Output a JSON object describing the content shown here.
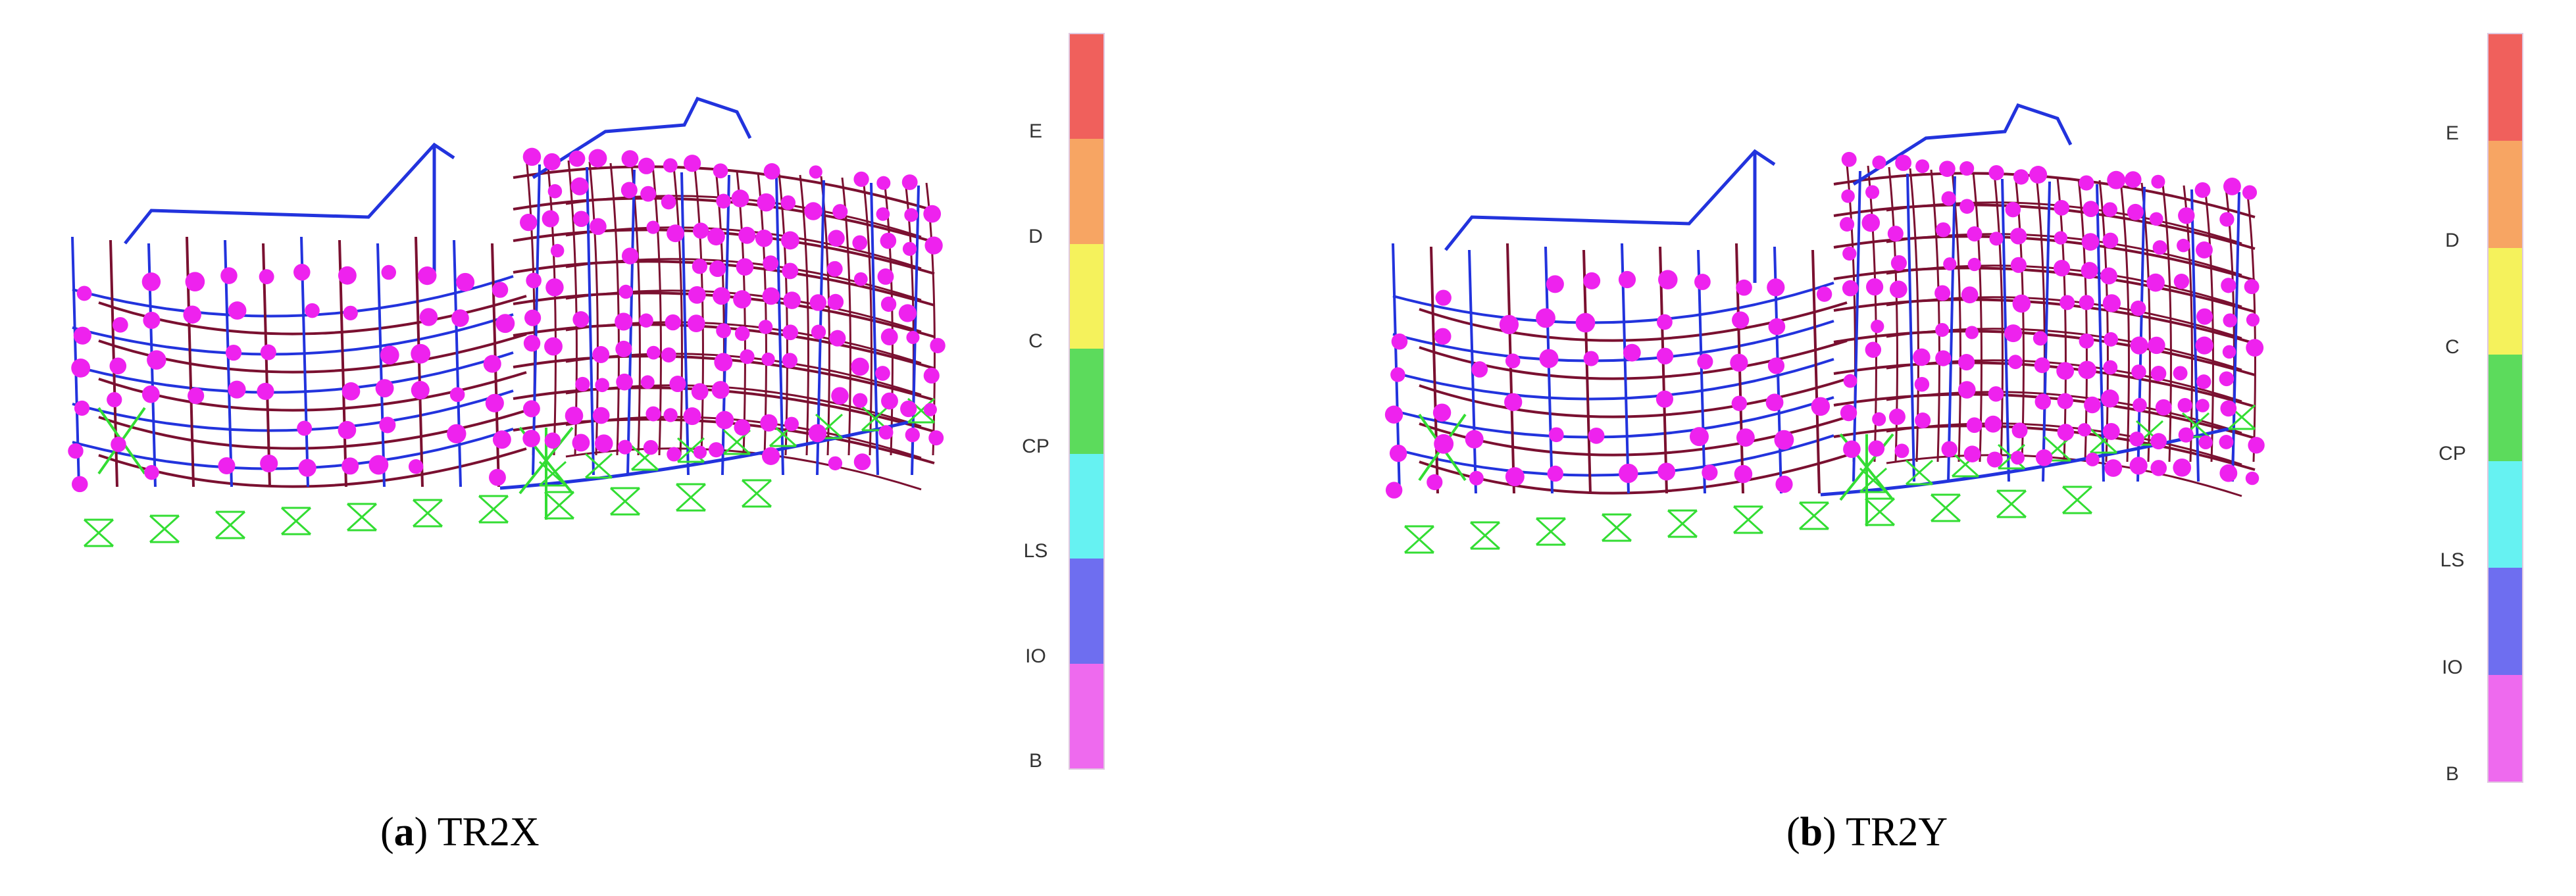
{
  "legend": {
    "levels": [
      {
        "label": "E",
        "color": "#f0605c"
      },
      {
        "label": "D",
        "color": "#f7a563"
      },
      {
        "label": "C",
        "color": "#f5f25c"
      },
      {
        "label": "CP",
        "color": "#5cdb5c"
      },
      {
        "label": "LS",
        "color": "#66f2f2"
      },
      {
        "label": "IO",
        "color": "#6e6ef0"
      },
      {
        "label": "B",
        "color": "#ee6aee"
      }
    ]
  },
  "panels": [
    {
      "letter": "a",
      "name": "TR2X"
    },
    {
      "letter": "b",
      "name": "TR2Y"
    }
  ],
  "colors": {
    "frame_blue": "#2233dd",
    "deformed_maroon": "#7a1030",
    "hinge_magenta": "#ee22ee",
    "support_green": "#33dd33"
  }
}
